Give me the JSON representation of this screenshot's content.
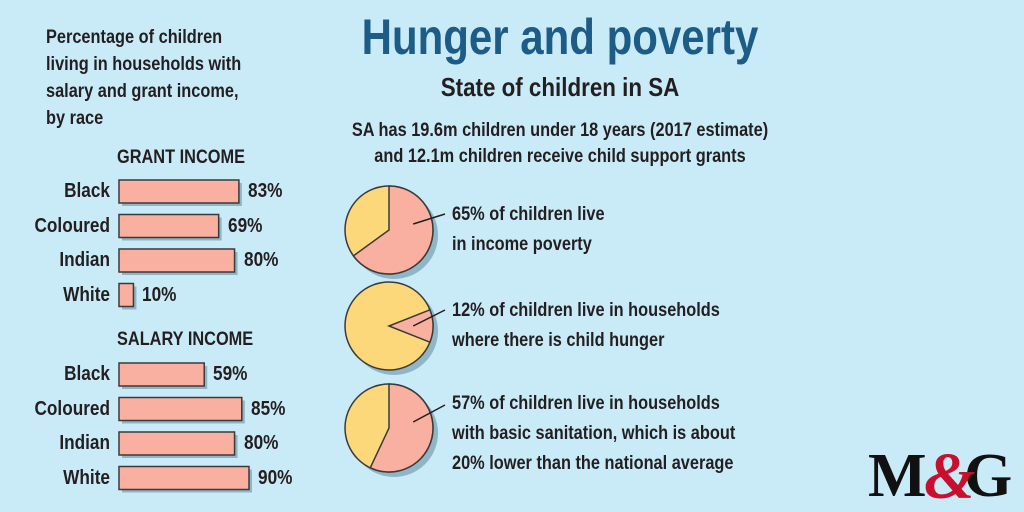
{
  "header": {
    "title": "Hunger and poverty",
    "subtitle": "State of children in SA",
    "intro_line_1": "SA has 19.6m children under 18 years (2017 estimate)",
    "intro_line_2": "and 12.1m children receive child support grants"
  },
  "left_panel": {
    "description": "Percentage of children living in households with salary and grant income, by race"
  },
  "colors": {
    "background": "#c9ebf8",
    "bar_fill": "#f9b0a0",
    "bar_stroke": "#3a3a3a",
    "pie_primary": "#f9b0a0",
    "pie_rest": "#fdd87a",
    "title": "#1d5c86",
    "logo_red": "#c8102e"
  },
  "chart_data": [
    {
      "type": "bar",
      "title": "GRANT INCOME",
      "categories": [
        "Black",
        "Coloured",
        "Indian",
        "White"
      ],
      "values": [
        83,
        69,
        80,
        10
      ],
      "value_labels": [
        "83%",
        "69%",
        "80%",
        "10%"
      ],
      "xlim": [
        0,
        100
      ],
      "orientation": "horizontal"
    },
    {
      "type": "bar",
      "title": "SALARY INCOME",
      "categories": [
        "Black",
        "Coloured",
        "Indian",
        "White"
      ],
      "values": [
        59,
        85,
        80,
        90
      ],
      "value_labels": [
        "59%",
        "85%",
        "80%",
        "90%"
      ],
      "xlim": [
        0,
        100
      ],
      "orientation": "horizontal"
    },
    {
      "type": "pie",
      "values": [
        65,
        35
      ],
      "text_lines": [
        "65% of children live",
        "in income poverty"
      ]
    },
    {
      "type": "pie",
      "values": [
        12,
        88
      ],
      "text_lines": [
        "12% of children live in households",
        "where there is child hunger"
      ]
    },
    {
      "type": "pie",
      "values": [
        57,
        43
      ],
      "text_lines": [
        "57% of children live in households",
        "with basic sanitation, which is about",
        "20% lower than the national average"
      ]
    }
  ],
  "logo": {
    "text": "M&G"
  }
}
